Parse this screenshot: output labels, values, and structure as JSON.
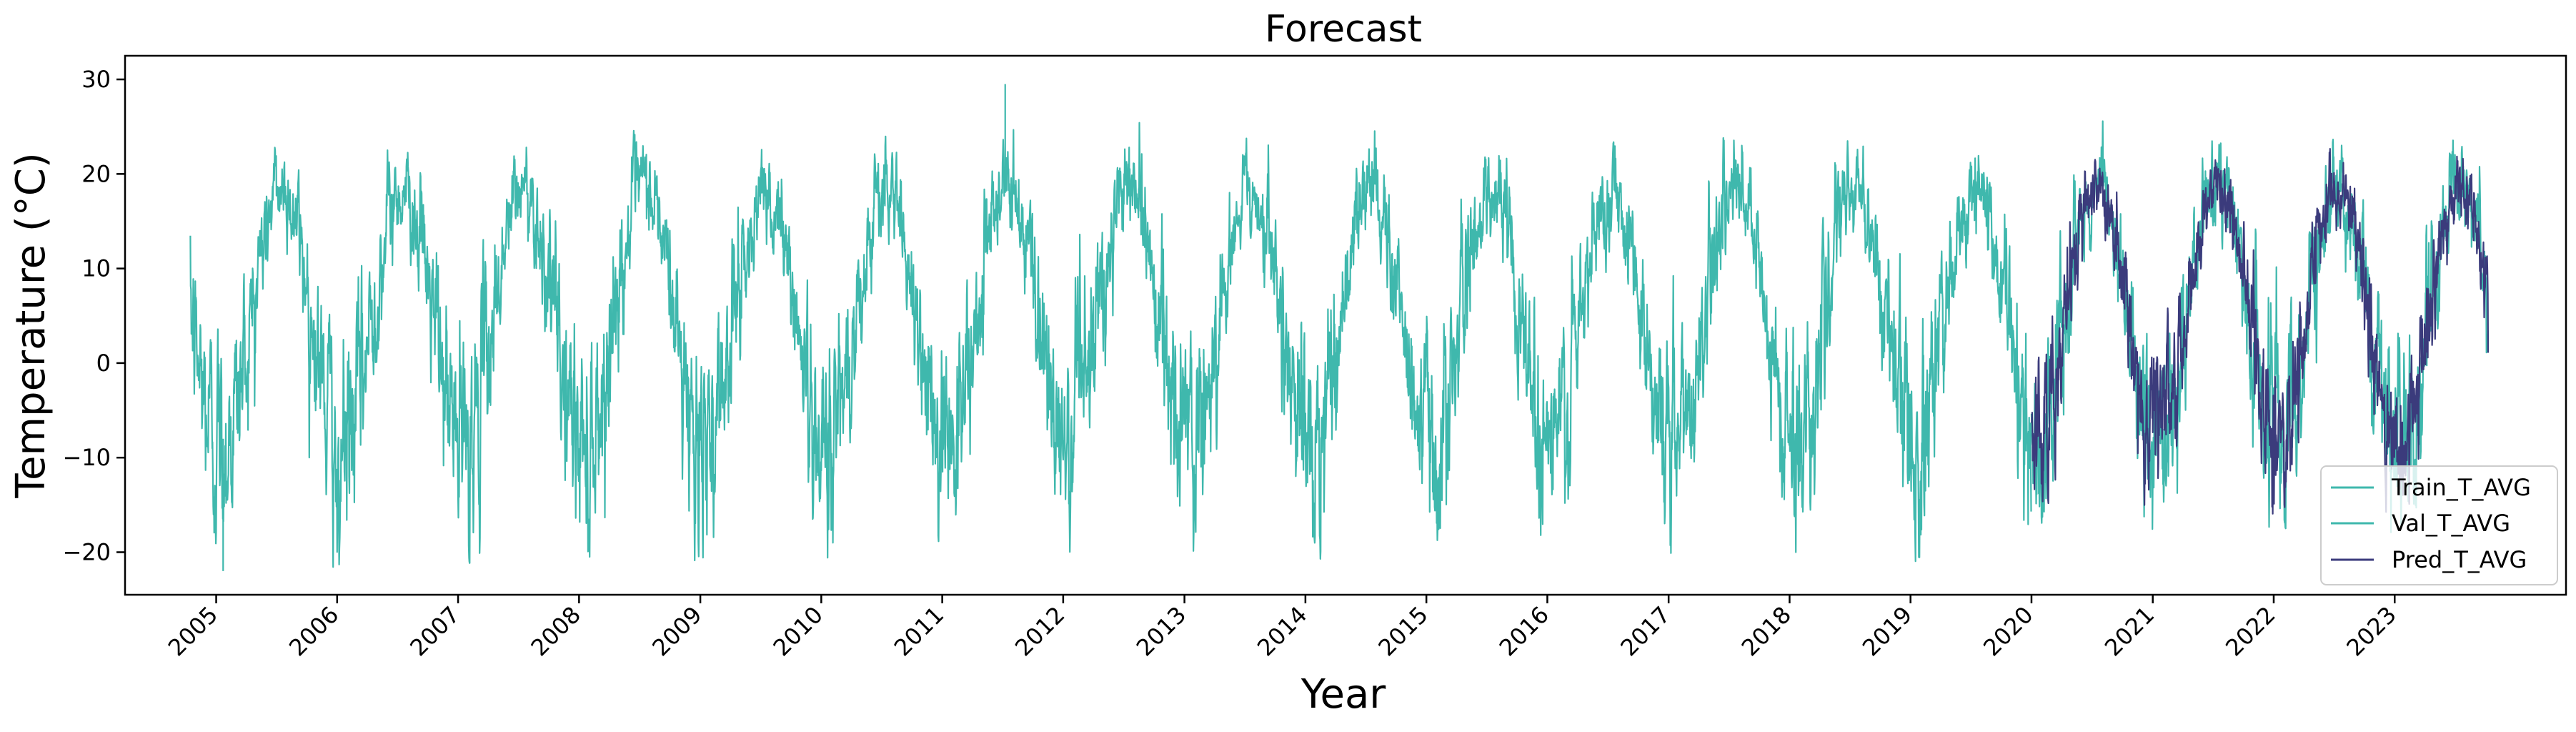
{
  "chart_data": {
    "type": "line",
    "title": "Forecast",
    "xlabel": "Year",
    "ylabel": "Temperature (°C)",
    "xlim": [
      "2004-04-01",
      "2024-06-01"
    ],
    "ylim": [
      -24.5,
      32.5
    ],
    "xticks": [
      "2005",
      "2006",
      "2007",
      "2008",
      "2009",
      "2010",
      "2011",
      "2012",
      "2013",
      "2014",
      "2015",
      "2016",
      "2017",
      "2018",
      "2019",
      "2020",
      "2021",
      "2022",
      "2023"
    ],
    "yticks": [
      -20,
      -10,
      0,
      10,
      20,
      30
    ],
    "grid": false,
    "legend_position": "lower right",
    "colors": {
      "train": "#3fb8ad",
      "val": "#3fb8ad",
      "pred": "#3b3b7c"
    },
    "series": [
      {
        "name": "Train_T_AVG",
        "date_range": [
          "2004-10-15",
          "2019-12-31"
        ],
        "seasonal_profile": {
          "mean": 5,
          "amplitude": 13.5,
          "coldest_month": "mid-January",
          "typical_max": 25,
          "typical_min": -15,
          "extremes": {
            "max": 29.5,
            "min": -22
          }
        }
      },
      {
        "name": "Val_T_AVG",
        "date_range": [
          "2020-01-01",
          "2023-10-10"
        ],
        "seasonal_profile": {
          "mean": 5.2,
          "amplitude": 13.5,
          "typical_max": 25,
          "typical_min": -15,
          "extremes": {
            "max": 26.5,
            "min": -18
          }
        }
      },
      {
        "name": "Pred_T_AVG",
        "date_range": [
          "2020-01-01",
          "2023-10-10"
        ],
        "seasonal_profile": {
          "mean": 5.5,
          "amplitude": 13.5,
          "typical_max": 23.5,
          "typical_min": -12,
          "extremes": {
            "max": 24.5,
            "min": -16
          }
        }
      }
    ]
  }
}
